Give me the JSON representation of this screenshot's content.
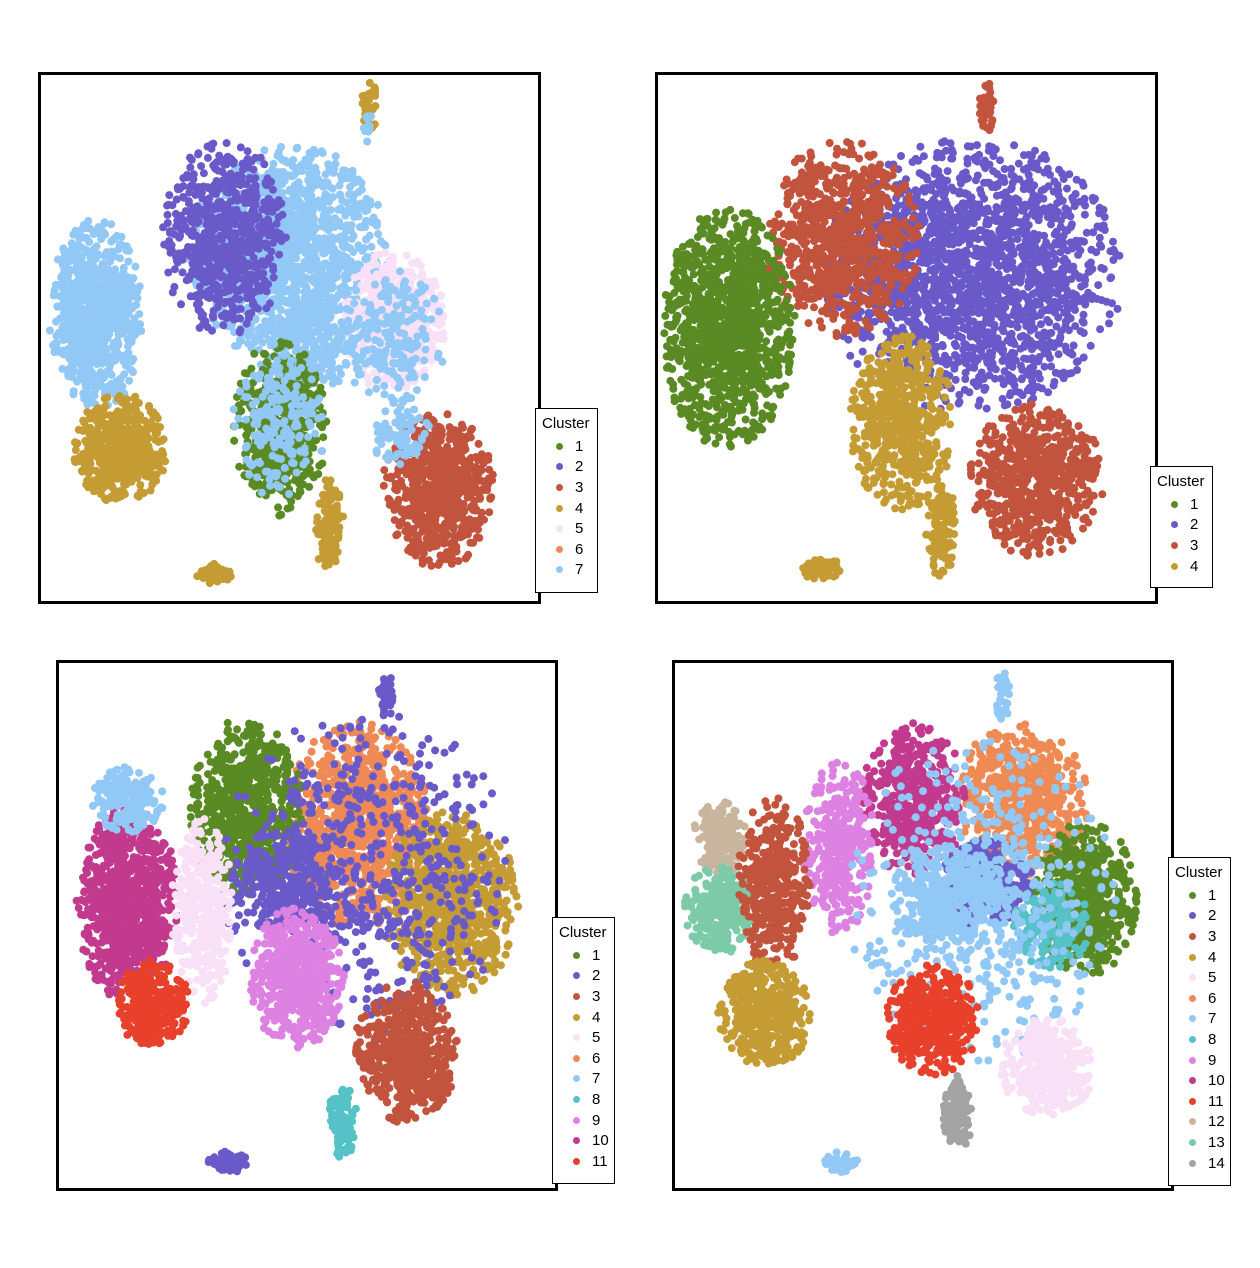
{
  "chart_data": [
    {
      "type": "scatter",
      "legend_title": "Cluster",
      "legend_placement": "right",
      "series": [
        {
          "name": "1",
          "color": "#5a8a23"
        },
        {
          "name": "2",
          "color": "#6a5ac9"
        },
        {
          "name": "3",
          "color": "#c2533c"
        },
        {
          "name": "4",
          "color": "#c59c34"
        },
        {
          "name": "5",
          "color": "#f8e0f6"
        },
        {
          "name": "6",
          "color": "#ef8a55"
        },
        {
          "name": "7",
          "color": "#92c8f5"
        }
      ],
      "regions": [
        {
          "c": 6,
          "x": 0.5,
          "y": 0.34,
          "rx": 0.19,
          "ry": 0.2,
          "n": 1400
        },
        {
          "c": 1,
          "x": 0.37,
          "y": 0.31,
          "rx": 0.12,
          "ry": 0.18,
          "n": 700
        },
        {
          "c": 4,
          "x": 0.71,
          "y": 0.47,
          "rx": 0.1,
          "ry": 0.13,
          "n": 550
        },
        {
          "c": 6,
          "x": 0.71,
          "y": 0.5,
          "rx": 0.1,
          "ry": 0.13,
          "n": 200
        },
        {
          "c": 6,
          "x": 0.55,
          "y": 0.52,
          "rx": 0.11,
          "ry": 0.09,
          "n": 180
        },
        {
          "c": 0,
          "x": 0.48,
          "y": 0.67,
          "rx": 0.09,
          "ry": 0.16,
          "n": 500
        },
        {
          "c": 6,
          "x": 0.48,
          "y": 0.65,
          "rx": 0.09,
          "ry": 0.15,
          "n": 200
        },
        {
          "c": 2,
          "x": 0.8,
          "y": 0.79,
          "rx": 0.11,
          "ry": 0.14,
          "n": 650
        },
        {
          "c": 6,
          "x": 0.72,
          "y": 0.68,
          "rx": 0.06,
          "ry": 0.06,
          "n": 80
        },
        {
          "c": 3,
          "x": 0.58,
          "y": 0.86,
          "rx": 0.03,
          "ry": 0.09,
          "n": 140
        },
        {
          "c": 3,
          "x": 0.35,
          "y": 0.95,
          "rx": 0.04,
          "ry": 0.02,
          "n": 50
        },
        {
          "c": 3,
          "x": 0.66,
          "y": 0.06,
          "rx": 0.015,
          "ry": 0.05,
          "n": 40
        },
        {
          "c": 6,
          "x": 0.66,
          "y": 0.1,
          "rx": 0.01,
          "ry": 0.03,
          "n": 12
        },
        {
          "c": 6,
          "x": 0.11,
          "y": 0.46,
          "rx": 0.09,
          "ry": 0.18,
          "n": 800
        },
        {
          "c": 3,
          "x": 0.16,
          "y": 0.71,
          "rx": 0.09,
          "ry": 0.1,
          "n": 550
        }
      ]
    },
    {
      "type": "scatter",
      "legend_title": "Cluster",
      "legend_placement": "right",
      "series": [
        {
          "name": "1",
          "color": "#5a8a23"
        },
        {
          "name": "2",
          "color": "#6a5ac9"
        },
        {
          "name": "3",
          "color": "#c2533c"
        },
        {
          "name": "4",
          "color": "#c59c34"
        }
      ],
      "regions": [
        {
          "c": 1,
          "x": 0.63,
          "y": 0.38,
          "rx": 0.29,
          "ry": 0.25,
          "n": 2000
        },
        {
          "c": 2,
          "x": 0.37,
          "y": 0.31,
          "rx": 0.15,
          "ry": 0.18,
          "n": 800
        },
        {
          "c": 0,
          "x": 0.14,
          "y": 0.48,
          "rx": 0.13,
          "ry": 0.22,
          "n": 1200
        },
        {
          "c": 3,
          "x": 0.49,
          "y": 0.66,
          "rx": 0.1,
          "ry": 0.16,
          "n": 600
        },
        {
          "c": 2,
          "x": 0.76,
          "y": 0.77,
          "rx": 0.13,
          "ry": 0.14,
          "n": 700
        },
        {
          "c": 3,
          "x": 0.57,
          "y": 0.86,
          "rx": 0.03,
          "ry": 0.09,
          "n": 140
        },
        {
          "c": 3,
          "x": 0.33,
          "y": 0.94,
          "rx": 0.04,
          "ry": 0.02,
          "n": 50
        },
        {
          "c": 2,
          "x": 0.66,
          "y": 0.06,
          "rx": 0.015,
          "ry": 0.05,
          "n": 40
        }
      ]
    },
    {
      "type": "scatter",
      "legend_title": "Cluster",
      "legend_placement": "right",
      "series": [
        {
          "name": "1",
          "color": "#5a8a23"
        },
        {
          "name": "2",
          "color": "#6a5ac9"
        },
        {
          "name": "3",
          "color": "#c2533c"
        },
        {
          "name": "4",
          "color": "#c59c34"
        },
        {
          "name": "5",
          "color": "#f8e0f6"
        },
        {
          "name": "6",
          "color": "#ef8a55"
        },
        {
          "name": "7",
          "color": "#92c8f5"
        },
        {
          "name": "8",
          "color": "#56c2c8"
        },
        {
          "name": "9",
          "color": "#dd82e2"
        },
        {
          "name": "10",
          "color": "#c23a8e"
        },
        {
          "name": "11",
          "color": "#e8412b"
        }
      ],
      "regions": [
        {
          "c": 5,
          "x": 0.6,
          "y": 0.31,
          "rx": 0.14,
          "ry": 0.19,
          "n": 900
        },
        {
          "c": 0,
          "x": 0.38,
          "y": 0.28,
          "rx": 0.11,
          "ry": 0.17,
          "n": 700
        },
        {
          "c": 1,
          "x": 0.45,
          "y": 0.42,
          "rx": 0.1,
          "ry": 0.1,
          "n": 300
        },
        {
          "c": 3,
          "x": 0.79,
          "y": 0.46,
          "rx": 0.13,
          "ry": 0.17,
          "n": 800
        },
        {
          "c": 1,
          "x": 0.62,
          "y": 0.4,
          "rx": 0.28,
          "ry": 0.3,
          "n": 600
        },
        {
          "c": 8,
          "x": 0.48,
          "y": 0.6,
          "rx": 0.09,
          "ry": 0.13,
          "n": 600
        },
        {
          "c": 2,
          "x": 0.7,
          "y": 0.74,
          "rx": 0.1,
          "ry": 0.13,
          "n": 600
        },
        {
          "c": 7,
          "x": 0.57,
          "y": 0.87,
          "rx": 0.03,
          "ry": 0.07,
          "n": 120
        },
        {
          "c": 1,
          "x": 0.34,
          "y": 0.95,
          "rx": 0.04,
          "ry": 0.02,
          "n": 50
        },
        {
          "c": 1,
          "x": 0.66,
          "y": 0.06,
          "rx": 0.015,
          "ry": 0.05,
          "n": 40
        },
        {
          "c": 9,
          "x": 0.14,
          "y": 0.46,
          "rx": 0.1,
          "ry": 0.18,
          "n": 800
        },
        {
          "c": 6,
          "x": 0.14,
          "y": 0.26,
          "rx": 0.07,
          "ry": 0.06,
          "n": 200
        },
        {
          "c": 4,
          "x": 0.29,
          "y": 0.47,
          "rx": 0.06,
          "ry": 0.17,
          "n": 350
        },
        {
          "c": 10,
          "x": 0.19,
          "y": 0.65,
          "rx": 0.07,
          "ry": 0.08,
          "n": 350
        }
      ]
    },
    {
      "type": "scatter",
      "legend_title": "Cluster",
      "legend_placement": "right",
      "series": [
        {
          "name": "1",
          "color": "#5a8a23"
        },
        {
          "name": "2",
          "color": "#6a5ac9"
        },
        {
          "name": "3",
          "color": "#c2533c"
        },
        {
          "name": "4",
          "color": "#c59c34"
        },
        {
          "name": "5",
          "color": "#f8e0f6"
        },
        {
          "name": "6",
          "color": "#ef8a55"
        },
        {
          "name": "7",
          "color": "#92c8f5"
        },
        {
          "name": "8",
          "color": "#56c2c8"
        },
        {
          "name": "9",
          "color": "#dd82e2"
        },
        {
          "name": "10",
          "color": "#c23a8e"
        },
        {
          "name": "11",
          "color": "#e8412b"
        },
        {
          "name": "12",
          "color": "#c9b59e"
        },
        {
          "name": "13",
          "color": "#7ccaa8"
        },
        {
          "name": "14",
          "color": "#a3a3a3"
        }
      ],
      "regions": [
        {
          "c": 5,
          "x": 0.7,
          "y": 0.26,
          "rx": 0.13,
          "ry": 0.14,
          "n": 600
        },
        {
          "c": 9,
          "x": 0.48,
          "y": 0.26,
          "rx": 0.1,
          "ry": 0.14,
          "n": 500
        },
        {
          "c": 8,
          "x": 0.33,
          "y": 0.35,
          "rx": 0.07,
          "ry": 0.16,
          "n": 350
        },
        {
          "c": 1,
          "x": 0.63,
          "y": 0.42,
          "rx": 0.09,
          "ry": 0.08,
          "n": 300
        },
        {
          "c": 0,
          "x": 0.83,
          "y": 0.45,
          "rx": 0.1,
          "ry": 0.14,
          "n": 600
        },
        {
          "c": 7,
          "x": 0.76,
          "y": 0.5,
          "rx": 0.08,
          "ry": 0.08,
          "n": 200
        },
        {
          "c": 6,
          "x": 0.56,
          "y": 0.45,
          "rx": 0.12,
          "ry": 0.1,
          "n": 400
        },
        {
          "c": 6,
          "x": 0.62,
          "y": 0.45,
          "rx": 0.26,
          "ry": 0.3,
          "n": 500
        },
        {
          "c": 10,
          "x": 0.52,
          "y": 0.68,
          "rx": 0.09,
          "ry": 0.1,
          "n": 450
        },
        {
          "c": 4,
          "x": 0.75,
          "y": 0.77,
          "rx": 0.09,
          "ry": 0.09,
          "n": 350
        },
        {
          "c": 13,
          "x": 0.57,
          "y": 0.86,
          "rx": 0.03,
          "ry": 0.07,
          "n": 120
        },
        {
          "c": 6,
          "x": 0.34,
          "y": 0.95,
          "rx": 0.04,
          "ry": 0.02,
          "n": 50
        },
        {
          "c": 6,
          "x": 0.66,
          "y": 0.06,
          "rx": 0.015,
          "ry": 0.05,
          "n": 40
        },
        {
          "c": 11,
          "x": 0.09,
          "y": 0.33,
          "rx": 0.05,
          "ry": 0.07,
          "n": 180
        },
        {
          "c": 12,
          "x": 0.09,
          "y": 0.47,
          "rx": 0.07,
          "ry": 0.08,
          "n": 280
        },
        {
          "c": 2,
          "x": 0.2,
          "y": 0.42,
          "rx": 0.07,
          "ry": 0.16,
          "n": 400
        },
        {
          "c": 3,
          "x": 0.18,
          "y": 0.67,
          "rx": 0.09,
          "ry": 0.1,
          "n": 450
        }
      ]
    }
  ]
}
